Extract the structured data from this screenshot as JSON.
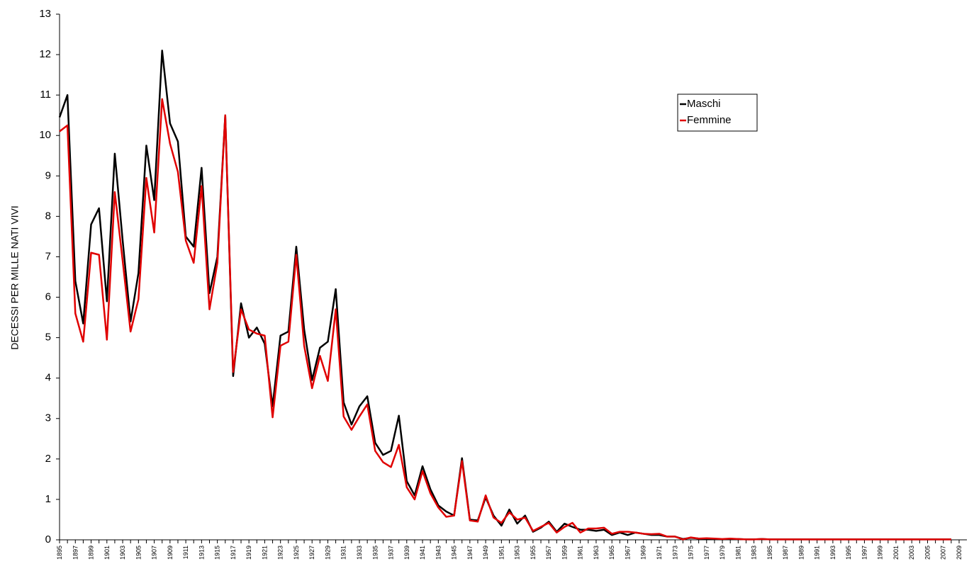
{
  "chart_data": {
    "type": "line",
    "y_label": "DECESSI PER MILLE NATI VIVI",
    "categories": [
      "1895",
      null,
      "1897",
      null,
      "1899",
      null,
      "1901",
      null,
      "1903",
      null,
      "1905",
      null,
      "1907",
      null,
      "1909",
      null,
      "1911",
      null,
      "1913",
      null,
      "1915",
      null,
      "1917",
      null,
      "1919",
      null,
      "1921",
      null,
      "1923",
      null,
      "1925",
      null,
      "1927",
      null,
      "1929",
      null,
      "1931",
      null,
      "1933",
      null,
      "1935",
      null,
      "1937",
      null,
      "1939",
      null,
      "1941",
      null,
      "1943",
      null,
      "1945",
      null,
      "1947",
      null,
      "1949",
      null,
      "1951",
      null,
      "1953",
      null,
      "1955",
      null,
      "1957",
      null,
      "1959",
      null,
      "1961",
      null,
      "1963",
      null,
      "1965",
      null,
      "1967",
      null,
      "1969",
      null,
      "1971",
      null,
      "1973",
      null,
      "1975",
      null,
      "1977",
      null,
      "1979",
      null,
      "1981",
      null,
      "1983",
      null,
      "1985",
      null,
      "1987",
      null,
      "1989",
      null,
      "1991",
      null,
      "1993",
      null,
      "1995",
      null,
      "1997",
      null,
      "1999",
      null,
      "2001",
      null,
      "2003",
      null,
      "2005",
      null,
      "2007",
      null,
      "2009"
    ],
    "series": [
      {
        "name": "Maschi",
        "color": "#000000",
        "values": [
          10.45,
          11.0,
          6.4,
          5.35,
          7.8,
          8.2,
          5.9,
          9.55,
          7.4,
          5.4,
          6.6,
          9.75,
          8.4,
          12.1,
          10.3,
          9.85,
          7.5,
          7.25,
          9.2,
          6.1,
          7.0,
          10.5,
          4.05,
          5.85,
          5.0,
          5.25,
          4.85,
          3.3,
          5.05,
          5.15,
          7.25,
          5.2,
          3.95,
          4.75,
          4.9,
          6.2,
          3.4,
          2.85,
          3.3,
          3.55,
          2.4,
          2.1,
          2.2,
          3.07,
          1.45,
          1.1,
          1.82,
          1.25,
          0.85,
          0.7,
          0.6,
          2.02,
          0.5,
          0.48,
          1.05,
          0.6,
          0.35,
          0.75,
          0.4,
          0.6,
          0.2,
          0.3,
          0.45,
          0.2,
          0.4,
          0.32,
          0.25,
          0.25,
          0.22,
          0.25,
          0.12,
          0.18,
          0.12,
          0.18,
          0.15,
          0.12,
          0.12,
          0.08,
          0.08,
          0.02,
          0.05,
          0.03,
          0.03,
          0.02,
          0.01,
          0.02,
          0.02,
          0.01,
          0.01,
          0.02,
          0.01,
          0.01,
          0.01,
          0.01,
          0.01,
          0.01,
          0.01,
          0.01,
          0.01,
          0.01,
          0.01,
          0.01,
          0.01,
          0.01,
          0.01,
          0.01,
          0.01,
          0.01,
          0.01,
          0.01,
          0.01,
          0.01,
          0.01,
          0.01,
          null
        ]
      },
      {
        "name": "Femmine",
        "color": "#e00000",
        "values": [
          10.1,
          10.25,
          5.6,
          4.9,
          7.1,
          7.05,
          4.95,
          8.6,
          6.9,
          5.15,
          5.95,
          8.95,
          7.6,
          10.9,
          9.8,
          9.1,
          7.4,
          6.85,
          8.75,
          5.7,
          6.85,
          10.5,
          4.15,
          5.7,
          5.2,
          5.1,
          5.05,
          3.03,
          4.8,
          4.9,
          7.05,
          4.8,
          3.75,
          4.55,
          3.93,
          5.7,
          3.05,
          2.72,
          3.05,
          3.35,
          2.2,
          1.92,
          1.8,
          2.35,
          1.3,
          1.0,
          1.7,
          1.15,
          0.8,
          0.57,
          0.6,
          1.95,
          0.48,
          0.45,
          1.1,
          0.55,
          0.42,
          0.68,
          0.5,
          0.55,
          0.22,
          0.32,
          0.42,
          0.18,
          0.32,
          0.42,
          0.18,
          0.28,
          0.28,
          0.3,
          0.15,
          0.2,
          0.2,
          0.18,
          0.15,
          0.14,
          0.15,
          0.08,
          0.08,
          0.01,
          0.06,
          0.03,
          0.04,
          0.03,
          0.02,
          0.03,
          0.02,
          0.01,
          0.01,
          0.02,
          0.01,
          0.01,
          0.01,
          0.01,
          0.01,
          0.01,
          0.01,
          0.01,
          0.01,
          0.01,
          0.01,
          0.01,
          0.01,
          0.01,
          0.01,
          0.01,
          0.01,
          0.01,
          0.01,
          0.01,
          0.01,
          0.01,
          0.01,
          0.01,
          null
        ]
      }
    ],
    "ylim": [
      0,
      13
    ],
    "yticks": [
      0,
      1,
      2,
      3,
      4,
      5,
      6,
      7,
      8,
      9,
      10,
      11,
      12,
      13
    ],
    "legend": "upper right"
  }
}
